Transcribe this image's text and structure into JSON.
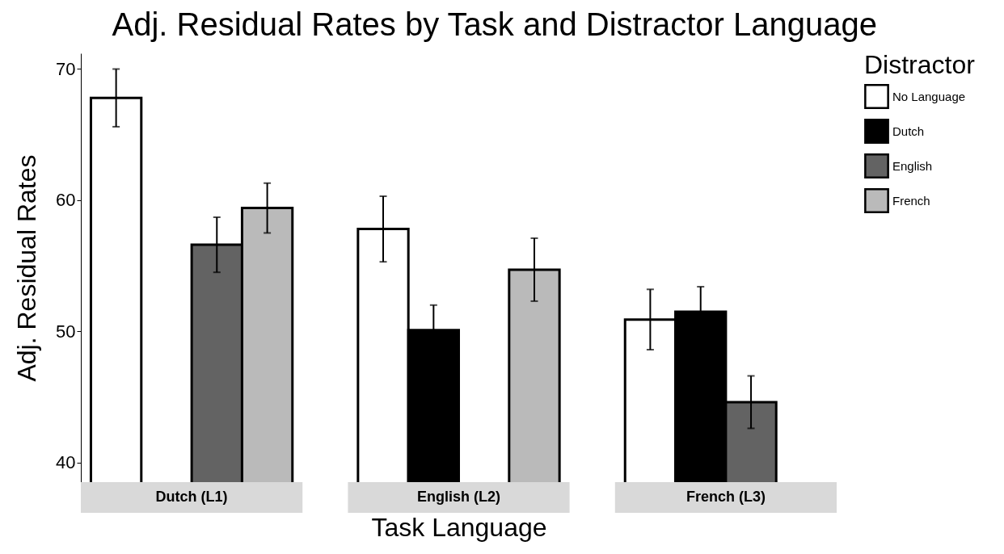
{
  "chart_data": {
    "type": "bar",
    "title": "Adj. Residual Rates by Task and Distractor Language",
    "xlabel": "Task Language",
    "ylabel": "Adj. Residual Rates",
    "legend_title": "Distractor",
    "categories": [
      "Dutch (L1)",
      "English (L2)",
      "French (L3)"
    ],
    "series": [
      {
        "name": "No Language",
        "color": "#ffffff",
        "values": [
          67.8,
          57.8,
          50.9
        ],
        "errors": [
          2.2,
          2.5,
          2.3
        ]
      },
      {
        "name": "Dutch",
        "color": "#000000",
        "values": [
          null,
          50.1,
          51.5
        ],
        "errors": [
          null,
          1.9,
          1.9
        ]
      },
      {
        "name": "English",
        "color": "#636363",
        "values": [
          56.6,
          null,
          44.6
        ],
        "errors": [
          2.1,
          null,
          2.0
        ]
      },
      {
        "name": "French",
        "color": "#bababa",
        "values": [
          59.4,
          54.7,
          null
        ],
        "errors": [
          1.9,
          2.4,
          null
        ]
      }
    ],
    "ylim": [
      38.5,
      71.2
    ],
    "yticks": [
      40,
      50,
      60,
      70
    ],
    "grid": false,
    "legend": "right"
  }
}
